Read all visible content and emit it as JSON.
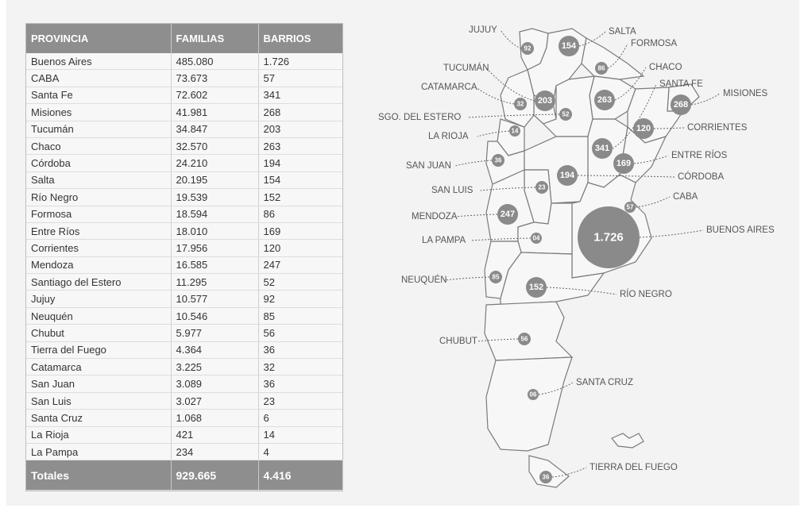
{
  "table": {
    "headers": [
      "PROVINCIA",
      "FAMILIAS",
      "BARRIOS"
    ],
    "rows": [
      [
        "Buenos Aires",
        "485.080",
        "1.726"
      ],
      [
        "CABA",
        "73.673",
        "57"
      ],
      [
        "Santa Fe",
        "72.602",
        "341"
      ],
      [
        "Misiones",
        "41.981",
        "268"
      ],
      [
        "Tucumán",
        "34.847",
        "203"
      ],
      [
        "Chaco",
        "32.570",
        "263"
      ],
      [
        "Córdoba",
        "24.210",
        "194"
      ],
      [
        "Salta",
        "20.195",
        "154"
      ],
      [
        "Río Negro",
        "19.539",
        "152"
      ],
      [
        "Formosa",
        "18.594",
        "86"
      ],
      [
        "Entre Ríos",
        "18.010",
        "169"
      ],
      [
        "Corrientes",
        "17.956",
        "120"
      ],
      [
        "Mendoza",
        "16.585",
        "247"
      ],
      [
        "Santiago del Estero",
        "11.295",
        "52"
      ],
      [
        "Jujuy",
        "10.577",
        "92"
      ],
      [
        "Neuquén",
        "10.546",
        "85"
      ],
      [
        "Chubut",
        "5.977",
        "56"
      ],
      [
        "Tierra del Fuego",
        "4.364",
        "36"
      ],
      [
        "Catamarca",
        "3.225",
        "32"
      ],
      [
        "San Juan",
        "3.089",
        "36"
      ],
      [
        "San Luis",
        "3.027",
        "23"
      ],
      [
        "Santa Cruz",
        "1.068",
        "6"
      ],
      [
        "La Rioja",
        "421",
        "14"
      ],
      [
        "La Pampa",
        "234",
        "4"
      ]
    ],
    "totals": [
      "Totales",
      "929.665",
      "4.416"
    ]
  },
  "map": {
    "bubble_color": "#8a8a8a",
    "provinces": [
      {
        "label": "JUJUY",
        "value": "92"
      },
      {
        "label": "SALTA",
        "value": "154"
      },
      {
        "label": "FORMOSA",
        "value": "86"
      },
      {
        "label": "TUCUMÁN",
        "value": "203"
      },
      {
        "label": "CHACO",
        "value": "263"
      },
      {
        "label": "CATAMARCA",
        "value": "32"
      },
      {
        "label": "SANTA FE",
        "value": "341"
      },
      {
        "label": "MISIONES",
        "value": "268"
      },
      {
        "label": "SGO. DEL ESTERO",
        "value": "52"
      },
      {
        "label": "CORRIENTES",
        "value": "120"
      },
      {
        "label": "LA RIOJA",
        "value": "14"
      },
      {
        "label": "ENTRE RÍOS",
        "value": "169"
      },
      {
        "label": "SAN JUAN",
        "value": "36"
      },
      {
        "label": "CÓRDOBA",
        "value": "194"
      },
      {
        "label": "SAN LUIS",
        "value": "23"
      },
      {
        "label": "CABA",
        "value": "57"
      },
      {
        "label": "MENDOZA",
        "value": "247"
      },
      {
        "label": "BUENOS AIRES",
        "value": "1.726"
      },
      {
        "label": "LA PAMPA",
        "value": "04"
      },
      {
        "label": "NEUQUÉN",
        "value": "85"
      },
      {
        "label": "RÍO NEGRO",
        "value": "152"
      },
      {
        "label": "CHUBUT",
        "value": "56"
      },
      {
        "label": "SANTA CRUZ",
        "value": "06"
      },
      {
        "label": "TIERRA DEL FUEGO",
        "value": "36"
      }
    ]
  }
}
